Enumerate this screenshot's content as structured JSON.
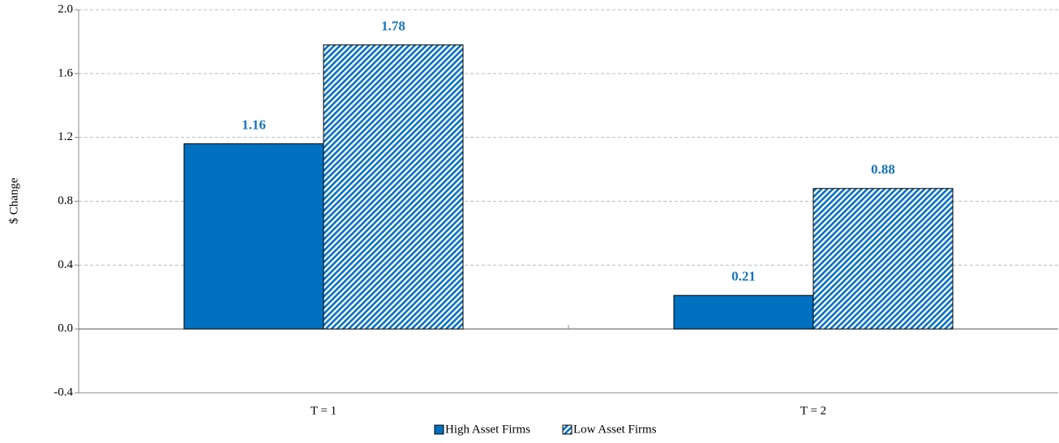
{
  "chart_data": {
    "type": "bar",
    "y_label": "$ Change",
    "categories": [
      "T = 1",
      "T = 2"
    ],
    "series": [
      {
        "name": "High Asset Firms",
        "color": "#0070c0",
        "values": [
          1.16,
          0.21
        ],
        "hatch": false
      },
      {
        "name": "Low Asset Firms",
        "color": "#0070c0",
        "values": [
          1.78,
          0.88
        ],
        "hatch": true
      }
    ],
    "ylim": [
      -0.4,
      2.0
    ],
    "yticks": [
      -0.4,
      {
        "value": 0,
        "label": "0.0"
      },
      0.4,
      0.8,
      1.2,
      1.6,
      {
        "value": 2,
        "label": "2.0"
      }
    ],
    "grid": true,
    "legend": "bottom"
  }
}
